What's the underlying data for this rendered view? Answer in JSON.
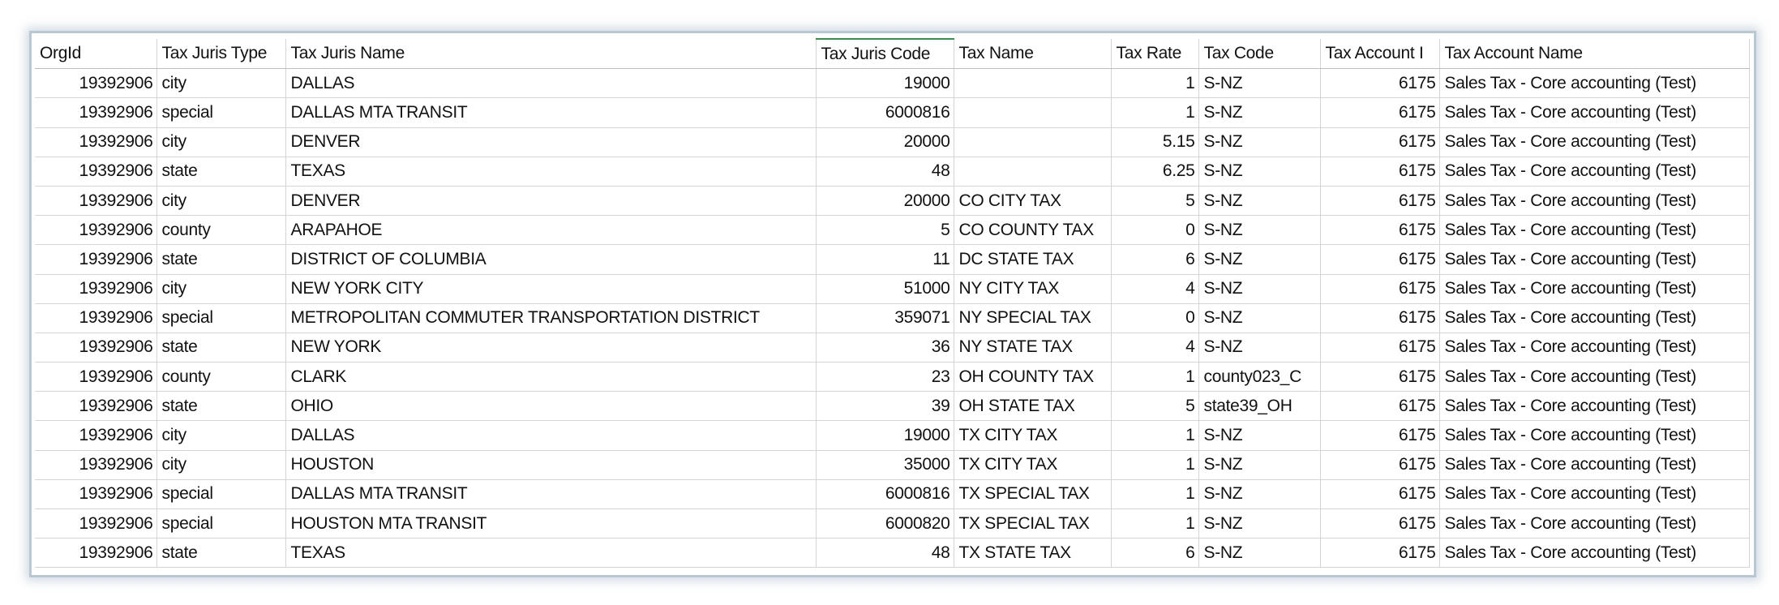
{
  "table": {
    "columns": [
      "OrgId",
      "Tax Juris Type",
      "Tax Juris Name",
      "Tax Juris Code",
      "Tax Name",
      "Tax Rate",
      "Tax Code",
      "Tax Account I",
      "Tax Account Name"
    ],
    "rows": [
      [
        19392906,
        "city",
        "DALLAS",
        19000,
        null,
        1,
        "S-NZ",
        6175,
        "Sales Tax - Core accounting (Test)"
      ],
      [
        19392906,
        "special",
        "DALLAS MTA TRANSIT",
        6000816,
        null,
        1,
        "S-NZ",
        6175,
        "Sales Tax - Core accounting (Test)"
      ],
      [
        19392906,
        "city",
        "DENVER",
        20000,
        null,
        5.15,
        "S-NZ",
        6175,
        "Sales Tax - Core accounting (Test)"
      ],
      [
        19392906,
        "state",
        "TEXAS",
        48,
        null,
        6.25,
        "S-NZ",
        6175,
        "Sales Tax - Core accounting (Test)"
      ],
      [
        19392906,
        "city",
        "DENVER",
        20000,
        "CO CITY TAX",
        5,
        "S-NZ",
        6175,
        "Sales Tax - Core accounting (Test)"
      ],
      [
        19392906,
        "county",
        "ARAPAHOE",
        5,
        "CO COUNTY TAX",
        0,
        "S-NZ",
        6175,
        "Sales Tax - Core accounting (Test)"
      ],
      [
        19392906,
        "state",
        "DISTRICT OF COLUMBIA",
        11,
        "DC STATE TAX",
        6,
        "S-NZ",
        6175,
        "Sales Tax - Core accounting (Test)"
      ],
      [
        19392906,
        "city",
        "NEW YORK CITY",
        51000,
        "NY CITY TAX",
        4,
        "S-NZ",
        6175,
        "Sales Tax - Core accounting (Test)"
      ],
      [
        19392906,
        "special",
        "METROPOLITAN COMMUTER TRANSPORTATION DISTRICT",
        359071,
        "NY SPECIAL TAX",
        0,
        "S-NZ",
        6175,
        "Sales Tax - Core accounting (Test)"
      ],
      [
        19392906,
        "state",
        "NEW YORK",
        36,
        "NY STATE TAX",
        4,
        "S-NZ",
        6175,
        "Sales Tax - Core accounting (Test)"
      ],
      [
        19392906,
        "county",
        "CLARK",
        23,
        "OH COUNTY TAX",
        1,
        "county023_C",
        6175,
        "Sales Tax - Core accounting (Test)"
      ],
      [
        19392906,
        "state",
        "OHIO",
        39,
        "OH STATE TAX",
        5,
        "state39_OH",
        6175,
        "Sales Tax - Core accounting (Test)"
      ],
      [
        19392906,
        "city",
        "DALLAS",
        19000,
        "TX CITY TAX",
        1,
        "S-NZ",
        6175,
        "Sales Tax - Core accounting (Test)"
      ],
      [
        19392906,
        "city",
        "HOUSTON",
        35000,
        "TX CITY TAX",
        1,
        "S-NZ",
        6175,
        "Sales Tax - Core accounting (Test)"
      ],
      [
        19392906,
        "special",
        "DALLAS MTA TRANSIT",
        6000816,
        "TX SPECIAL TAX",
        1,
        "S-NZ",
        6175,
        "Sales Tax - Core accounting (Test)"
      ],
      [
        19392906,
        "special",
        "HOUSTON MTA TRANSIT",
        6000820,
        "TX SPECIAL TAX",
        1,
        "S-NZ",
        6175,
        "Sales Tax - Core accounting (Test)"
      ],
      [
        19392906,
        "state",
        "TEXAS",
        48,
        "TX STATE TAX",
        6,
        "S-NZ",
        6175,
        "Sales Tax - Core accounting (Test)"
      ]
    ]
  }
}
